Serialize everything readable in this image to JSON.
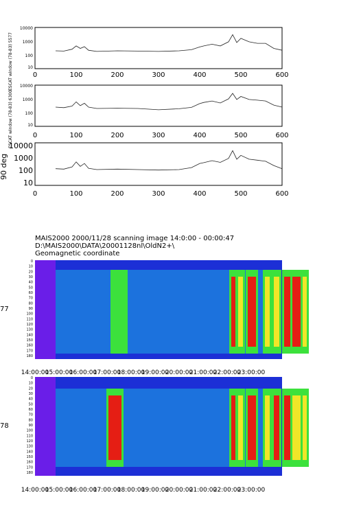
{
  "line_panels": [
    {
      "ylabel": "ESCAT window (78-83) 5577",
      "yticks": [
        "10000",
        "1000",
        "100",
        "10"
      ],
      "xticks": [
        "0",
        "100",
        "200",
        "300",
        "400",
        "500",
        "600"
      ]
    },
    {
      "ylabel": "ESCAT window (78-83) 6300",
      "yticks": [
        "10000",
        "1000",
        "100",
        "10"
      ],
      "xticks": [
        "0",
        "100",
        "200",
        "300",
        "400",
        "500",
        "600"
      ]
    },
    {
      "ylabel": "90 deg",
      "yticks": [
        "10000",
        "1000",
        "100",
        "10"
      ],
      "xticks": [
        "0",
        "100",
        "200",
        "300",
        "400",
        "500",
        "600"
      ]
    }
  ],
  "image_header": {
    "line1": "MAIS2000 2000/11/28 scanning image 14:0:00 - 00:00:47",
    "line2": "D:\\MAIS2000\\DATA\\20001128nl\\OldN2+\\",
    "line3": "Geomagnetic coordinate"
  },
  "image_panels": [
    {
      "side_label": "77"
    },
    {
      "side_label": "78"
    }
  ],
  "image_yticks": [
    "0",
    "10",
    "20",
    "30",
    "40",
    "50",
    "60",
    "70",
    "80",
    "90",
    "100",
    "110",
    "120",
    "130",
    "140",
    "150",
    "160",
    "170",
    "180"
  ],
  "image_xticks": [
    "14:00:00",
    "15:00:00",
    "16:00:00",
    "17:00:00",
    "18:00:00",
    "19:00:00",
    "20:00:00",
    "21:00:00",
    "22:00:00",
    "23:00:00"
  ],
  "colors": {
    "line": "#222222",
    "low": "#1c2fd6",
    "mid": "#19b4e6",
    "green": "#3ce13c",
    "yellow": "#f0e628",
    "red": "#e51e14",
    "purple": "#6a1ee8"
  },
  "chart_data": [
    {
      "type": "line",
      "xlim": [
        0,
        600
      ],
      "ylim": [
        10,
        10000
      ],
      "yscale": "log",
      "x": [
        50,
        70,
        90,
        100,
        110,
        120,
        130,
        150,
        200,
        250,
        300,
        350,
        380,
        400,
        410,
        430,
        450,
        470,
        480,
        490,
        500,
        520,
        540,
        560,
        580,
        600
      ],
      "values": [
        200,
        190,
        260,
        450,
        300,
        400,
        220,
        180,
        200,
        190,
        180,
        200,
        240,
        380,
        450,
        600,
        450,
        900,
        3000,
        800,
        1600,
        900,
        700,
        700,
        300,
        220
      ]
    },
    {
      "type": "line",
      "xlim": [
        0,
        600
      ],
      "ylim": [
        10,
        10000
      ],
      "yscale": "log",
      "x": [
        50,
        70,
        90,
        100,
        110,
        120,
        130,
        150,
        200,
        250,
        300,
        350,
        380,
        400,
        410,
        430,
        450,
        470,
        480,
        490,
        500,
        520,
        540,
        560,
        580,
        600
      ],
      "values": [
        250,
        230,
        300,
        600,
        320,
        480,
        250,
        200,
        210,
        200,
        160,
        190,
        240,
        450,
        550,
        700,
        500,
        1000,
        2500,
        900,
        1500,
        900,
        800,
        700,
        350,
        250
      ]
    },
    {
      "type": "line",
      "xlim": [
        0,
        600
      ],
      "ylim": [
        10,
        10000
      ],
      "yscale": "log",
      "x": [
        50,
        70,
        90,
        100,
        110,
        120,
        130,
        150,
        200,
        250,
        300,
        350,
        380,
        400,
        410,
        430,
        450,
        470,
        480,
        490,
        500,
        520,
        540,
        560,
        580,
        600
      ],
      "values": [
        150,
        140,
        200,
        450,
        220,
        350,
        160,
        130,
        140,
        130,
        120,
        130,
        180,
        350,
        400,
        550,
        420,
        800,
        2800,
        700,
        1300,
        700,
        600,
        500,
        250,
        150
      ]
    },
    {
      "type": "heatmap",
      "title": "MAIS2000 2000/11/28 scanning image 14:0:00 - 00:00:47",
      "y": [
        0,
        180
      ],
      "bands": [
        {
          "x": [
            113,
            120
          ],
          "level": "green"
        },
        {
          "x": [
            126,
            132
          ],
          "level": "green"
        },
        {
          "x": [
            286,
            292
          ],
          "level": "red"
        },
        {
          "x": [
            296,
            303
          ],
          "level": "yellow"
        },
        {
          "x": [
            310,
            322
          ],
          "level": "red"
        },
        {
          "x": [
            335,
            342
          ],
          "level": "yellow"
        },
        {
          "x": [
            348,
            356
          ],
          "level": "yellow"
        },
        {
          "x": [
            363,
            372
          ],
          "level": "red"
        },
        {
          "x": [
            375,
            388
          ],
          "level": "red"
        },
        {
          "x": [
            390,
            396
          ],
          "level": "yellow"
        }
      ]
    },
    {
      "type": "heatmap",
      "y": [
        0,
        180
      ],
      "bands": [
        {
          "x": [
            107,
            126
          ],
          "level": "red"
        },
        {
          "x": [
            286,
            292
          ],
          "level": "red"
        },
        {
          "x": [
            296,
            303
          ],
          "level": "yellow"
        },
        {
          "x": [
            310,
            322
          ],
          "level": "red"
        },
        {
          "x": [
            335,
            342
          ],
          "level": "yellow"
        },
        {
          "x": [
            348,
            356
          ],
          "level": "red"
        },
        {
          "x": [
            363,
            372
          ],
          "level": "red"
        },
        {
          "x": [
            375,
            388
          ],
          "level": "yellow"
        },
        {
          "x": [
            390,
            396
          ],
          "level": "yellow"
        }
      ]
    }
  ]
}
